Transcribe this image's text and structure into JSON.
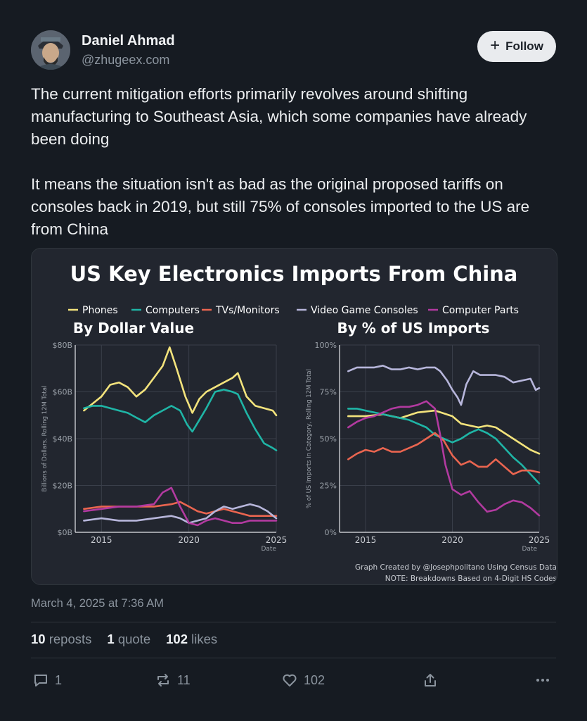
{
  "author": {
    "name": "Daniel Ahmad",
    "handle": "@zhugeex.com",
    "follow_label": "Follow",
    "avatar_icon": "avatar-portrait-icon"
  },
  "post": {
    "text": "The current mitigation efforts primarily revolves around shifting manufacturing to Southeast Asia, which some companies have already been doing\n\nIt means the situation isn't as bad as the original proposed tariffs on consoles back in 2019, but still 75% of consoles imported to the US are from China",
    "timestamp": "March 4, 2025 at 7:36 AM"
  },
  "stats": {
    "reposts_count": "10",
    "reposts_label": "reposts",
    "quotes_count": "1",
    "quotes_label": "quote",
    "likes_count": "102",
    "likes_label": "likes"
  },
  "actions": {
    "reply_count": "1",
    "repost_count": "11",
    "like_count": "102",
    "reply_icon": "reply-icon",
    "repost_icon": "repost-icon",
    "like_icon": "heart-icon",
    "share_icon": "share-icon",
    "more_icon": "more-icon"
  },
  "chart_data": {
    "title": "US Key Electronics Imports From China",
    "legend": [
      {
        "name": "Phones",
        "color": "#f3e37c"
      },
      {
        "name": "Computers",
        "color": "#1fb5a6"
      },
      {
        "name": "TVs/Monitors",
        "color": "#ea6550"
      },
      {
        "name": "Video Game Consoles",
        "color": "#b7b6db"
      },
      {
        "name": "Computer Parts",
        "color": "#b23aa0"
      }
    ],
    "note1": "Graph Created by @Josephpolitano Using Census Data",
    "note2": "NOTE: Breakdowns Based on 4-Digit HS Codes",
    "panels": [
      {
        "type": "line",
        "title": "By Dollar Value",
        "ylabel": "Billions of Dollars, Rolling 12M Total",
        "xlabel": "Date",
        "yticks": [
          "$0B",
          "$20B",
          "$40B",
          "$60B",
          "$80B"
        ],
        "xticks": [
          "2015",
          "2020",
          "2025"
        ],
        "ylim": [
          0,
          80
        ],
        "xlim": [
          2013.5,
          2025
        ],
        "series": [
          {
            "name": "Phones",
            "x": [
              2014,
              2014.5,
              2015,
              2015.5,
              2016,
              2016.5,
              2017,
              2017.5,
              2018,
              2018.5,
              2018.9,
              2019.3,
              2019.8,
              2020.2,
              2020.6,
              2021,
              2021.5,
              2022,
              2022.5,
              2022.8,
              2023.3,
              2023.8,
              2024.3,
              2024.8,
              2025
            ],
            "values": [
              52,
              55,
              58,
              63,
              64,
              62,
              58,
              61,
              66,
              71,
              79,
              70,
              58,
              51,
              57,
              60,
              62,
              64,
              66,
              68,
              58,
              54,
              53,
              52,
              50
            ]
          },
          {
            "name": "Computers",
            "x": [
              2014,
              2014.5,
              2015,
              2015.5,
              2016,
              2016.5,
              2017,
              2017.5,
              2018,
              2018.5,
              2019,
              2019.5,
              2019.9,
              2020.2,
              2020.6,
              2021,
              2021.5,
              2022,
              2022.5,
              2022.8,
              2023.3,
              2023.8,
              2024.3,
              2024.8,
              2025
            ],
            "values": [
              53,
              54,
              54,
              53,
              52,
              51,
              49,
              47,
              50,
              52,
              54,
              52,
              46,
              43,
              48,
              53,
              60,
              61,
              60,
              59,
              51,
              44,
              38,
              36,
              35
            ]
          },
          {
            "name": "TVs/Monitors",
            "x": [
              2014,
              2015,
              2016,
              2017,
              2018,
              2019,
              2019.5,
              2020,
              2020.5,
              2021,
              2021.5,
              2022,
              2022.5,
              2023,
              2023.5,
              2024,
              2024.5,
              2025
            ],
            "values": [
              10,
              11,
              11,
              11,
              11,
              12,
              13,
              11,
              9,
              8,
              9,
              10,
              9,
              8,
              7,
              7,
              7,
              7
            ]
          },
          {
            "name": "Video Game Consoles",
            "x": [
              2014,
              2015,
              2016,
              2017,
              2018,
              2019,
              2019.5,
              2020,
              2020.5,
              2021,
              2021.5,
              2022,
              2022.5,
              2023,
              2023.5,
              2024,
              2024.5,
              2025
            ],
            "values": [
              5,
              6,
              5,
              5,
              6,
              7,
              6,
              4,
              5,
              6,
              9,
              11,
              10,
              11,
              12,
              11,
              9,
              6
            ]
          },
          {
            "name": "Computer Parts",
            "x": [
              2014,
              2015,
              2016,
              2017,
              2018,
              2018.5,
              2019,
              2019.5,
              2020,
              2020.5,
              2021,
              2021.5,
              2022,
              2022.5,
              2023,
              2023.5,
              2024,
              2024.5,
              2025
            ],
            "values": [
              9,
              10,
              11,
              11,
              12,
              17,
              19,
              11,
              4,
              3,
              5,
              6,
              5,
              4,
              4,
              5,
              5,
              5,
              5
            ]
          }
        ]
      },
      {
        "type": "line",
        "title": "By % of US Imports",
        "ylabel": "% of US Imports in Category, Rolling 12M Total",
        "xlabel": "Date",
        "yticks": [
          "0%",
          "25%",
          "50%",
          "75%",
          "100%"
        ],
        "xticks": [
          "2015",
          "2020",
          "2025"
        ],
        "ylim": [
          0,
          100
        ],
        "xlim": [
          2013.5,
          2025
        ],
        "series": [
          {
            "name": "Phones",
            "x": [
              2014,
              2015,
              2016,
              2017,
              2018,
              2019,
              2020,
              2020.5,
              2021,
              2021.5,
              2022,
              2022.5,
              2023,
              2023.5,
              2024,
              2024.5,
              2025
            ],
            "values": [
              62,
              62,
              63,
              61,
              64,
              65,
              62,
              58,
              57,
              56,
              57,
              56,
              53,
              50,
              47,
              44,
              42
            ]
          },
          {
            "name": "Computers",
            "x": [
              2014,
              2014.5,
              2015,
              2016,
              2016.5,
              2017,
              2017.5,
              2018,
              2018.5,
              2019,
              2019.5,
              2020,
              2020.5,
              2021,
              2021.5,
              2022,
              2022.5,
              2023,
              2023.5,
              2024,
              2024.5,
              2025
            ],
            "values": [
              66,
              66,
              65,
              63,
              62,
              61,
              60,
              58,
              56,
              52,
              50,
              48,
              50,
              53,
              55,
              53,
              50,
              45,
              40,
              36,
              31,
              26
            ]
          },
          {
            "name": "TVs/Monitors",
            "x": [
              2014,
              2014.5,
              2015,
              2015.5,
              2016,
              2016.5,
              2017,
              2017.5,
              2018,
              2018.5,
              2019,
              2019.5,
              2020,
              2020.5,
              2021,
              2021.5,
              2022,
              2022.5,
              2023,
              2023.5,
              2024,
              2024.5,
              2025
            ],
            "values": [
              39,
              42,
              44,
              43,
              45,
              43,
              43,
              45,
              47,
              50,
              53,
              49,
              41,
              36,
              38,
              35,
              35,
              39,
              35,
              31,
              33,
              33,
              32
            ]
          },
          {
            "name": "Video Game Consoles",
            "x": [
              2014,
              2014.5,
              2015,
              2015.5,
              2016,
              2016.5,
              2017,
              2017.5,
              2018,
              2018.5,
              2019,
              2019.3,
              2019.7,
              2020,
              2020.3,
              2020.5,
              2020.8,
              2021.2,
              2021.6,
              2022,
              2022.5,
              2023,
              2023.5,
              2024,
              2024.5,
              2024.8,
              2025
            ],
            "values": [
              86,
              88,
              88,
              88,
              89,
              87,
              87,
              88,
              87,
              88,
              88,
              86,
              81,
              76,
              72,
              68,
              79,
              86,
              84,
              84,
              84,
              83,
              80,
              81,
              82,
              76,
              77
            ]
          },
          {
            "name": "Computer Parts",
            "x": [
              2014,
              2014.5,
              2015,
              2015.5,
              2016,
              2016.5,
              2017,
              2017.5,
              2018,
              2018.5,
              2019,
              2019.3,
              2019.6,
              2020,
              2020.5,
              2021,
              2021.5,
              2022,
              2022.5,
              2023,
              2023.5,
              2024,
              2024.5,
              2025
            ],
            "values": [
              56,
              59,
              61,
              62,
              64,
              66,
              67,
              67,
              68,
              70,
              66,
              52,
              36,
              23,
              20,
              22,
              16,
              11,
              12,
              15,
              17,
              16,
              13,
              9
            ]
          }
        ]
      }
    ]
  }
}
